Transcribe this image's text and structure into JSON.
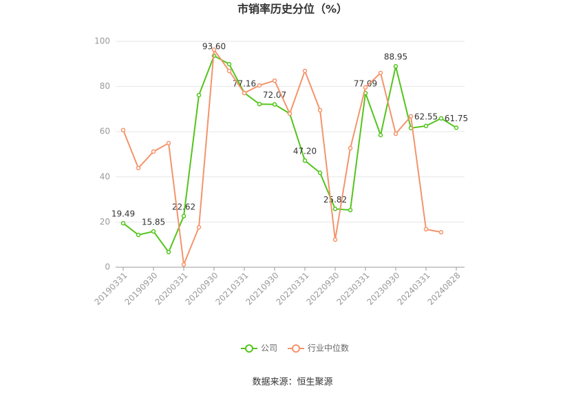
{
  "chart_data": {
    "type": "line",
    "title": "市销率历史分位（%）",
    "categories": [
      "20190331",
      null,
      "20190930",
      null,
      "20200331",
      null,
      "20200930",
      null,
      "20210331",
      null,
      "20210930",
      null,
      "20220331",
      null,
      "20220930",
      null,
      "20230331",
      null,
      "20230930",
      null,
      "20240331",
      null,
      "20240828"
    ],
    "series": [
      {
        "name": "公司",
        "color": "#52c41a",
        "values": [
          19.49,
          14.3,
          15.85,
          6.7,
          22.62,
          76.2,
          93.6,
          89.9,
          77.16,
          72.2,
          72.07,
          68.0,
          47.2,
          41.8,
          25.82,
          25.3,
          77.09,
          58.5,
          88.95,
          61.6,
          62.55,
          65.9,
          61.75
        ],
        "value_labels": [
          "19.49",
          null,
          "15.85",
          null,
          "22.62",
          null,
          "93.60",
          null,
          "77.16",
          null,
          "72.07",
          null,
          "47.20",
          null,
          "25.82",
          null,
          "77.09",
          null,
          "88.95",
          null,
          "62.55",
          null,
          "61.75"
        ]
      },
      {
        "name": "行业中位数",
        "color": "#f4936b",
        "values": [
          60.7,
          43.9,
          51.2,
          54.9,
          1.2,
          17.7,
          96.3,
          86.9,
          77.1,
          80.5,
          82.6,
          68.0,
          86.9,
          69.5,
          12.2,
          52.7,
          79.6,
          86.0,
          59.1,
          66.8,
          16.8,
          15.5,
          null
        ]
      }
    ],
    "ylim": [
      0,
      100
    ],
    "yticks": [
      0,
      20,
      40,
      60,
      80,
      100
    ],
    "grid": true,
    "source": "数据来源：恒生聚源"
  }
}
